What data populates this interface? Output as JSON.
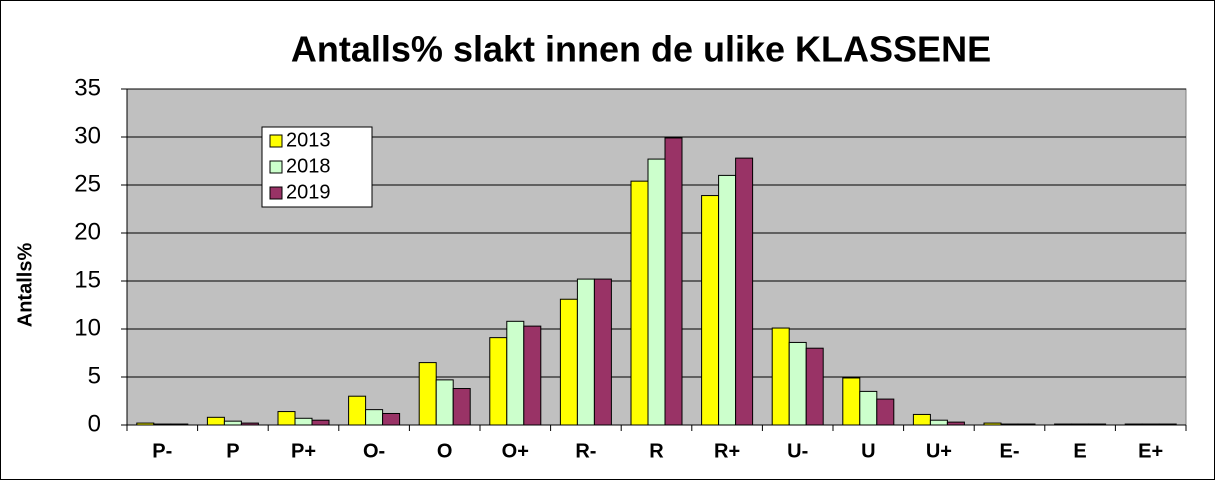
{
  "chart_data": {
    "type": "bar",
    "title": "Antalls% slakt innen de ulike KLASSENE",
    "y_label": "Antalls%",
    "categories": [
      "P-",
      "P",
      "P+",
      "O-",
      "O",
      "O+",
      "R-",
      "R",
      "R+",
      "U-",
      "U",
      "U+",
      "E-",
      "E",
      "E+"
    ],
    "series": [
      {
        "name": "2013",
        "color": "#ffff00",
        "values": [
          0.2,
          0.8,
          1.4,
          3.0,
          6.5,
          9.1,
          13.1,
          25.4,
          23.9,
          10.1,
          4.9,
          1.1,
          0.2,
          0.1,
          0.1
        ]
      },
      {
        "name": "2018",
        "color": "#ccffcc",
        "values": [
          0.1,
          0.4,
          0.7,
          1.6,
          4.7,
          10.8,
          15.2,
          27.7,
          26.0,
          8.6,
          3.5,
          0.5,
          0.1,
          0.1,
          0.1
        ]
      },
      {
        "name": "2019",
        "color": "#993366",
        "values": [
          0.1,
          0.2,
          0.5,
          1.2,
          3.8,
          10.3,
          15.2,
          29.9,
          27.8,
          8.0,
          2.7,
          0.3,
          0.1,
          0.1,
          0.1
        ]
      }
    ],
    "ylim": [
      0,
      35
    ],
    "yticks": [
      0,
      5,
      10,
      15,
      20,
      25,
      30,
      35
    ],
    "grid": true,
    "legend": "top-left"
  }
}
